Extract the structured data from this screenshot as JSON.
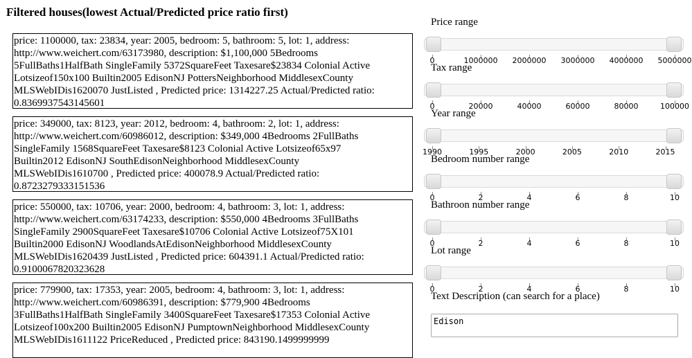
{
  "heading": "Filtered houses(lowest Actual/Predicted price ratio first)",
  "houses": [
    {
      "text": "price: 1100000, tax: 23834, year: 2005, bedroom: 5, bathroom: 5, lot: 1, address:\nhttp://www.weichert.com/63173980, description: $1,100,000 5Bedrooms\n5FullBaths1HalfBath SingleFamily 5372SquareFeet Taxesare$23834 Colonial Active\nLotsizeof150x100 Builtin2005 EdisonNJ PottersNeighborhood MiddlesexCounty\nMLSWebIDis1620070 JustListed , Predicted price: 1314227.25 Actual/Predicted ratio:\n0.8369937543145601"
    },
    {
      "text": "price: 349000, tax: 8123, year: 2012, bedroom: 4, bathroom: 2, lot: 1, address:\nhttp://www.weichert.com/60986012, description: $349,000 4Bedrooms 2FullBaths\nSingleFamily 1568SquareFeet Taxesare$8123 Colonial Active Lotsizeof65x97\nBuiltin2012 EdisonNJ SouthEdisonNeighborhood MiddlesexCounty\nMLSWebIDis1610700 , Predicted price: 400078.9 Actual/Predicted ratio:\n0.8723279333151536"
    },
    {
      "text": "price: 550000, tax: 10706, year: 2000, bedroom: 4, bathroom: 3, lot: 1, address:\nhttp://www.weichert.com/63174233, description: $550,000 4Bedrooms 3FullBaths\nSingleFamily 2900SquareFeet Taxesare$10706 Colonial Active Lotsizeof75X101\nBuiltin2000 EdisonNJ WoodlandsAtEdisonNeighborhood MiddlesexCounty\nMLSWebIDis1620439 JustListed , Predicted price: 604391.1 Actual/Predicted ratio:\n0.9100067820323628"
    },
    {
      "text": "price: 779900, tax: 17353, year: 2005, bedroom: 4, bathroom: 3, lot: 1, address:\nhttp://www.weichert.com/60986391, description: $779,900 4Bedrooms\n3FullBaths1HalfBath SingleFamily 3400SquareFeet Taxesare$17353 Colonial Active\nLotsizeof100x200 Builtin2005 EdisonNJ PumptownNeighborhood MiddlesexCounty\nMLSWebIDis1611122 PriceReduced , Predicted price: 843190.1499999999"
    }
  ],
  "sliders": [
    {
      "label": "Price range",
      "min": 0,
      "max": 5000000,
      "ticks": [
        "0",
        "1000000",
        "2000000",
        "3000000",
        "4000000",
        "5000000"
      ]
    },
    {
      "label": "Tax range",
      "min": 0,
      "max": 100000,
      "ticks": [
        "0",
        "20000",
        "40000",
        "60000",
        "80000",
        "100000"
      ]
    },
    {
      "label": "Year range",
      "min": 1990,
      "max": 2016,
      "ticks": [
        "1990",
        "1995",
        "2000",
        "2005",
        "2010",
        "2015"
      ]
    },
    {
      "label": "Bedroom number range",
      "min": 0,
      "max": 10,
      "ticks": [
        "0",
        "2",
        "4",
        "6",
        "8",
        "10"
      ]
    },
    {
      "label": "Bathroon number range",
      "min": 0,
      "max": 10,
      "ticks": [
        "0",
        "2",
        "4",
        "6",
        "8",
        "10"
      ]
    },
    {
      "label": "Lot range",
      "min": 0,
      "max": 10,
      "ticks": [
        "0",
        "2",
        "4",
        "6",
        "8",
        "10"
      ]
    }
  ],
  "text_description": {
    "label": "Text Description (can search for a place)",
    "value": "Edison"
  }
}
